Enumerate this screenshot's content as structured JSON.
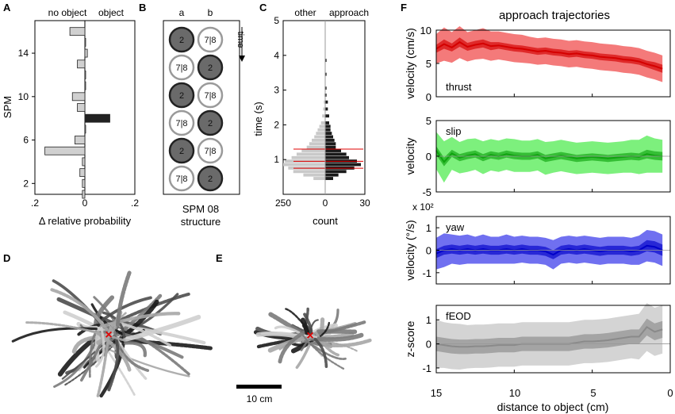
{
  "panel_labels": {
    "A": "A",
    "B": "B",
    "C": "C",
    "D": "D",
    "E": "E",
    "F": "F"
  },
  "colors": {
    "red_dark": "#d40000",
    "red_light": "#f47a7a",
    "green_dark": "#0fa30f",
    "green_light": "#7df07d",
    "blue_dark": "#0000c8",
    "blue_light": "#7070f0",
    "gray_dark": "#8a8a8a",
    "gray_light": "#d4d4d4"
  },
  "chart_data": [
    {
      "id": "A",
      "type": "bar",
      "orientation": "horizontal",
      "top_labels": [
        "no object",
        "object"
      ],
      "ylabel": "SPM",
      "xlabel": "Δ relative probability",
      "xlim": [
        -0.2,
        0.2
      ],
      "ylim": [
        1,
        17
      ],
      "xticks": [
        ".2",
        "0",
        ".2"
      ],
      "yticks": [
        "2",
        "6",
        "10",
        "14"
      ],
      "categories": [
        1,
        2,
        3,
        4,
        5,
        6,
        7,
        8,
        9,
        10,
        11,
        12,
        13,
        14,
        15,
        16
      ],
      "values": [
        -0.01,
        -0.01,
        -0.02,
        -0.01,
        -0.16,
        -0.04,
        0.0,
        0.1,
        -0.03,
        -0.05,
        0.0,
        0.0,
        -0.03,
        0.01,
        0.0,
        -0.06
      ],
      "highlight": 8
    },
    {
      "id": "B",
      "type": "diagram",
      "columns": [
        "a",
        "b"
      ],
      "arrow_label": "time",
      "footer_line1": "SPM 08",
      "footer_line2": "structure",
      "rows": [
        [
          "2",
          "7|8"
        ],
        [
          "7|8",
          "2"
        ],
        [
          "2",
          "7|8"
        ],
        [
          "7|8",
          "2"
        ],
        [
          "2",
          "7|8"
        ],
        [
          "7|8",
          "2"
        ]
      ]
    },
    {
      "id": "C",
      "type": "bar",
      "orientation": "horizontal-mirrored",
      "top_labels": [
        "other",
        "approach"
      ],
      "ylabel": "time (s)",
      "xlabel": "count",
      "xticks_left": [
        "250",
        "0"
      ],
      "xticks_right": [
        "30"
      ],
      "ylim": [
        0,
        5
      ],
      "yticks": [
        "1",
        "2",
        "3",
        "4",
        "5"
      ],
      "bins": [
        0.4,
        0.5,
        0.6,
        0.7,
        0.8,
        0.9,
        1.0,
        1.1,
        1.2,
        1.3,
        1.4,
        1.5,
        1.6,
        1.7,
        1.8,
        1.9,
        2.0,
        2.2,
        2.4,
        2.6,
        2.8,
        3.0,
        3.4,
        3.8
      ],
      "other_counts": [
        70,
        130,
        190,
        220,
        250,
        240,
        200,
        170,
        140,
        110,
        95,
        80,
        65,
        55,
        45,
        35,
        25,
        18,
        12,
        8,
        6,
        4,
        3,
        2
      ],
      "approach_counts": [
        6,
        10,
        16,
        22,
        27,
        24,
        18,
        16,
        12,
        8,
        8,
        7,
        6,
        5,
        4,
        4,
        3,
        3,
        2,
        2,
        1,
        1,
        1,
        1
      ],
      "red_lines": [
        0.75,
        0.95,
        1.3
      ]
    },
    {
      "id": "F",
      "type": "line",
      "title": "approach trajectories",
      "xlabel": "distance to object (cm)",
      "xlim": [
        15,
        0
      ],
      "xticks": [
        "15",
        "10",
        "5",
        "0"
      ],
      "subplots": [
        {
          "label": "thrust",
          "ylabel": "velocity (cm/s)",
          "ylim": [
            0,
            10
          ],
          "yticks": [
            "0",
            "5",
            "10"
          ],
          "x": [
            15,
            14.5,
            14,
            13.5,
            13,
            12.5,
            12,
            11.5,
            11,
            10.5,
            10,
            9.5,
            9,
            8.5,
            8,
            7.5,
            7,
            6.5,
            6,
            5.5,
            5,
            4.5,
            4,
            3.5,
            3,
            2.5,
            2,
            1.5,
            1,
            0.5
          ],
          "mean": [
            7.2,
            7.9,
            7.4,
            8.2,
            7.5,
            7.8,
            8.0,
            7.6,
            7.7,
            7.5,
            7.3,
            7.2,
            7.0,
            6.8,
            6.9,
            6.7,
            6.6,
            6.4,
            6.5,
            6.3,
            6.2,
            6.0,
            5.9,
            5.8,
            5.6,
            5.5,
            5.3,
            4.9,
            4.6,
            4.2
          ],
          "sem": [
            0.6,
            0.7,
            0.6,
            0.7,
            0.6,
            0.6,
            0.6,
            0.6,
            0.5,
            0.5,
            0.5,
            0.5,
            0.5,
            0.5,
            0.5,
            0.5,
            0.5,
            0.5,
            0.5,
            0.5,
            0.5,
            0.5,
            0.5,
            0.5,
            0.5,
            0.5,
            0.5,
            0.5,
            0.6,
            0.6
          ],
          "sd": [
            2.2,
            2.5,
            2.3,
            2.4,
            2.2,
            2.2,
            2.3,
            2.2,
            2.1,
            2.1,
            2.1,
            2.1,
            2.0,
            2.0,
            2.0,
            2.0,
            2.0,
            2.0,
            2.0,
            2.0,
            2.0,
            2.0,
            2.0,
            2.0,
            2.0,
            2.0,
            2.0,
            2.0,
            2.0,
            2.0
          ]
        },
        {
          "label": "slip",
          "ylabel": "velocity",
          "ylim": [
            -5,
            5
          ],
          "yticks": [
            "-5",
            "0",
            "5"
          ],
          "x": [
            15,
            14.5,
            14,
            13.5,
            13,
            12.5,
            12,
            11.5,
            11,
            10.5,
            10,
            9.5,
            9,
            8.5,
            8,
            7.5,
            7,
            6.5,
            6,
            5.5,
            5,
            4.5,
            4,
            3.5,
            3,
            2.5,
            2,
            1.5,
            1,
            0.5
          ],
          "mean": [
            0.8,
            -0.8,
            0.4,
            -0.2,
            0.1,
            0.3,
            -0.2,
            0.2,
            0.0,
            0.3,
            0.1,
            0.0,
            0.0,
            0.2,
            -0.3,
            -0.1,
            0.1,
            -0.1,
            -0.3,
            -0.2,
            -0.1,
            -0.2,
            -0.3,
            -0.2,
            -0.1,
            0.0,
            -0.1,
            0.3,
            0.1,
            0.0
          ],
          "sem": [
            0.6,
            0.6,
            0.5,
            0.5,
            0.5,
            0.5,
            0.5,
            0.5,
            0.5,
            0.5,
            0.5,
            0.5,
            0.5,
            0.5,
            0.5,
            0.5,
            0.5,
            0.5,
            0.5,
            0.5,
            0.5,
            0.5,
            0.5,
            0.5,
            0.5,
            0.5,
            0.5,
            0.6,
            0.6,
            0.6
          ],
          "sd": [
            2.6,
            2.9,
            2.3,
            2.2,
            2.3,
            2.2,
            2.3,
            2.2,
            2.2,
            2.2,
            2.3,
            2.2,
            2.2,
            2.2,
            2.3,
            2.2,
            2.2,
            2.2,
            2.2,
            2.2,
            2.2,
            2.2,
            2.2,
            2.2,
            2.2,
            2.3,
            2.4,
            2.6,
            2.4,
            2.3
          ]
        },
        {
          "label": "yaw",
          "ylabel": "velocity (°/s)",
          "multiplier": "x 10²",
          "ylim": [
            -1.5,
            1.5
          ],
          "yticks": [
            "-1",
            "0",
            "1"
          ],
          "x": [
            15,
            14.5,
            14,
            13.5,
            13,
            12.5,
            12,
            11.5,
            11,
            10.5,
            10,
            9.5,
            9,
            8.5,
            8,
            7.5,
            7,
            6.5,
            6,
            5.5,
            5,
            4.5,
            4,
            3.5,
            3,
            2.5,
            2,
            1.5,
            1,
            0.5
          ],
          "mean": [
            -0.15,
            0.0,
            0.05,
            0.0,
            0.05,
            0.0,
            0.05,
            0.0,
            0.0,
            0.05,
            0.0,
            0.05,
            0.0,
            0.0,
            -0.05,
            -0.2,
            0.0,
            0.05,
            0.0,
            0.05,
            0.0,
            -0.05,
            0.0,
            0.0,
            0.0,
            -0.05,
            0.0,
            0.2,
            0.15,
            0.0
          ],
          "sem": [
            0.2,
            0.2,
            0.2,
            0.2,
            0.2,
            0.2,
            0.2,
            0.2,
            0.2,
            0.2,
            0.2,
            0.2,
            0.2,
            0.2,
            0.2,
            0.2,
            0.2,
            0.2,
            0.2,
            0.2,
            0.2,
            0.2,
            0.2,
            0.2,
            0.2,
            0.2,
            0.2,
            0.25,
            0.25,
            0.25
          ],
          "sd": [
            0.7,
            0.75,
            0.65,
            0.65,
            0.65,
            0.6,
            0.65,
            0.6,
            0.6,
            0.65,
            0.6,
            0.6,
            0.6,
            0.6,
            0.6,
            0.65,
            0.6,
            0.6,
            0.6,
            0.6,
            0.6,
            0.6,
            0.6,
            0.6,
            0.6,
            0.6,
            0.65,
            0.7,
            0.7,
            0.7
          ]
        },
        {
          "label": "fEOD",
          "ylabel": "z-score",
          "ylim": [
            -1.2,
            1.6
          ],
          "yticks": [
            "-1",
            "0",
            "1"
          ],
          "x": [
            15,
            14.5,
            14,
            13.5,
            13,
            12.5,
            12,
            11.5,
            11,
            10.5,
            10,
            9.5,
            9,
            8.5,
            8,
            7.5,
            7,
            6.5,
            6,
            5.5,
            5,
            4.5,
            4,
            3.5,
            3,
            2.5,
            2,
            1.5,
            1,
            0.5
          ],
          "mean": [
            0.0,
            -0.05,
            -0.1,
            -0.12,
            -0.12,
            -0.1,
            -0.1,
            -0.08,
            -0.05,
            -0.05,
            -0.05,
            0.0,
            0.0,
            0.0,
            0.0,
            0.0,
            0.0,
            0.0,
            0.05,
            0.1,
            0.1,
            0.12,
            0.15,
            0.2,
            0.25,
            0.3,
            0.3,
            0.7,
            0.5,
            0.6
          ],
          "sem": [
            0.3,
            0.3,
            0.3,
            0.3,
            0.3,
            0.3,
            0.3,
            0.3,
            0.3,
            0.3,
            0.3,
            0.3,
            0.3,
            0.3,
            0.3,
            0.3,
            0.3,
            0.3,
            0.3,
            0.3,
            0.3,
            0.3,
            0.3,
            0.3,
            0.3,
            0.3,
            0.3,
            0.35,
            0.35,
            0.35
          ],
          "sd": [
            1.0,
            0.95,
            0.95,
            0.95,
            0.9,
            0.9,
            0.9,
            0.9,
            0.9,
            0.9,
            0.9,
            0.9,
            0.9,
            0.9,
            0.9,
            0.9,
            0.9,
            0.9,
            0.9,
            0.9,
            0.9,
            0.9,
            0.9,
            0.9,
            0.9,
            0.9,
            0.95,
            1.0,
            1.0,
            1.0
          ]
        }
      ]
    }
  ],
  "panel_D": {
    "description_marker": "×"
  },
  "panel_E": {
    "scalebar_label": "10 cm",
    "marker": "×"
  }
}
